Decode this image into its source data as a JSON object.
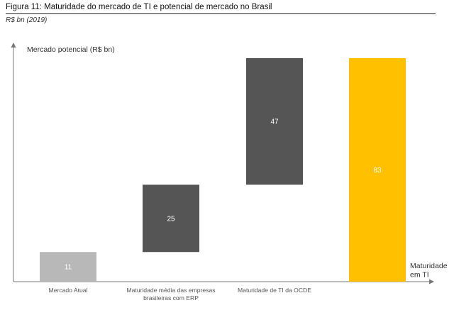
{
  "figure": {
    "title": "Figura 11: Maturidade do mercado de TI e potencial de mercado no Brasil",
    "subtitle": "R$ bn (2019)"
  },
  "chart_data": {
    "type": "bar",
    "variant": "waterfall",
    "title": "Figura 11: Maturidade do mercado de TI e potencial de mercado no Brasil",
    "subtitle": "R$ bn (2019)",
    "ylabel": "Mercado potencial (R$ bn)",
    "xlabel": [
      "Maturidade",
      "em TI"
    ],
    "categories": [
      [
        "Mercado Atual"
      ],
      [
        "Maturidade média das empresas",
        "brasileiras com ERP"
      ],
      [
        "Maturidade de TI da OCDE"
      ],
      [
        ""
      ]
    ],
    "values": [
      11,
      25,
      47,
      83
    ],
    "bases": [
      0,
      11,
      36,
      0
    ],
    "bar_colors": [
      "#b8b8b8",
      "#555555",
      "#555555",
      "#ffc000"
    ],
    "label_colors": [
      "#ffffff",
      "#ffffff",
      "#ffffff",
      "#ffffff"
    ],
    "ylim": [
      0,
      83
    ],
    "grid": false,
    "legend": "none"
  }
}
